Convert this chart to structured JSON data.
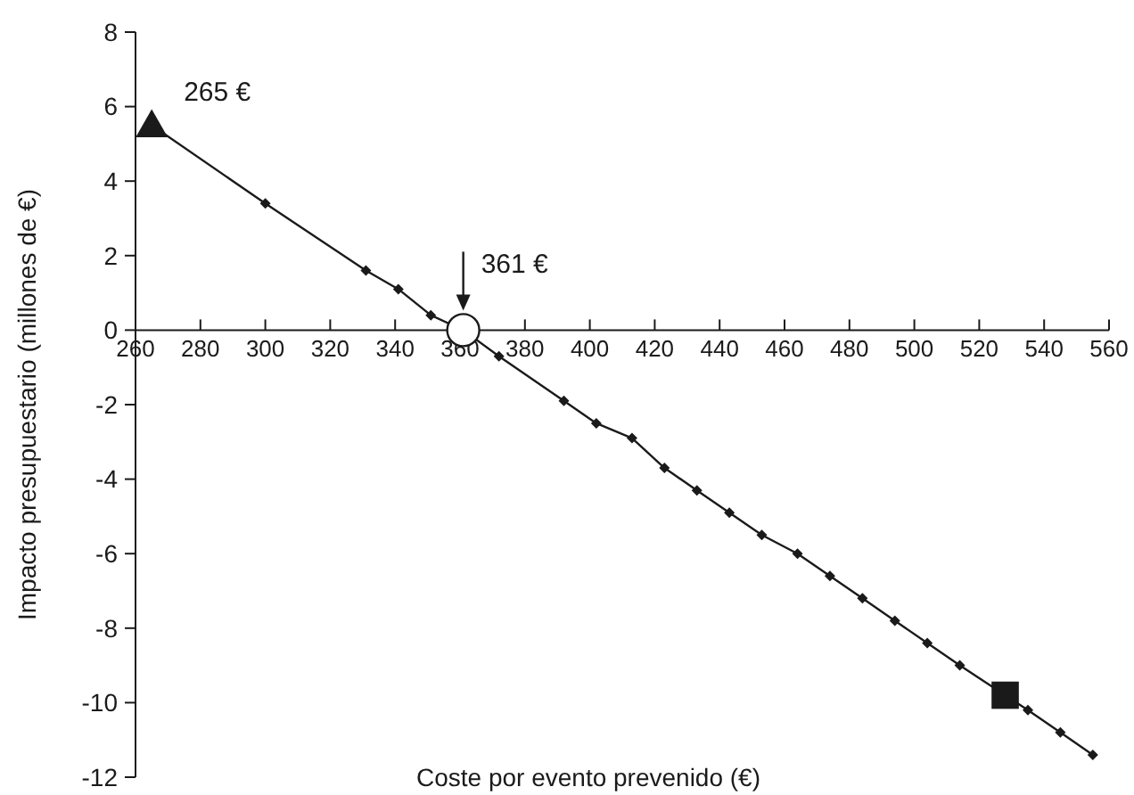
{
  "chart_data": {
    "type": "line",
    "xlabel": "Coste por evento prevenido (€)",
    "ylabel": "Impacto presupuestario (millones de €)",
    "xlim": [
      260,
      560
    ],
    "xticks": [
      260,
      280,
      300,
      320,
      340,
      360,
      380,
      400,
      420,
      440,
      460,
      480,
      500,
      520,
      540,
      560
    ],
    "ylim": [
      -12,
      8
    ],
    "yticks": [
      -12,
      -10,
      -8,
      -6,
      -4,
      -2,
      0,
      2,
      4,
      6,
      8
    ],
    "grid": false,
    "series": [
      {
        "color": "#1a1a1a",
        "marker": "none",
        "line_style": "solid",
        "x": [
          265,
          300,
          331,
          341,
          351,
          361,
          372,
          392,
          402,
          413,
          423,
          433,
          443,
          453,
          464,
          474,
          484,
          494,
          504,
          514,
          528,
          535,
          545,
          555
        ],
        "values": [
          5.5,
          3.4,
          1.6,
          1.1,
          0.4,
          0,
          -0.7,
          -1.9,
          -2.5,
          -2.9,
          -3.7,
          -4.3,
          -4.9,
          -5.5,
          -6.0,
          -6.6,
          -7.2,
          -7.8,
          -8.4,
          -9.0,
          -9.8,
          -10.2,
          -10.8,
          -11.4
        ]
      },
      {
        "type": "scatter",
        "color": "#1a1a1a",
        "marker": "diamond",
        "x": [
          300,
          331,
          341,
          351,
          372,
          392,
          402,
          413,
          423,
          433,
          443,
          453,
          464,
          474,
          484,
          494,
          504,
          514,
          535,
          545,
          555
        ],
        "values": [
          3.4,
          1.6,
          1.1,
          0.4,
          -0.7,
          -1.9,
          -2.5,
          -2.9,
          -3.7,
          -4.3,
          -4.9,
          -5.5,
          -6.0,
          -6.6,
          -7.2,
          -7.8,
          -8.4,
          -9.0,
          -10.2,
          -10.8,
          -11.4
        ]
      },
      {
        "type": "scatter",
        "color": "#1a1a1a",
        "marker": "triangle",
        "x": [
          265
        ],
        "values": [
          5.5
        ]
      },
      {
        "type": "scatter",
        "color": "#ffffff",
        "marker": "circle",
        "x": [
          361
        ],
        "values": [
          0
        ]
      },
      {
        "type": "scatter",
        "color": "#1a1a1a",
        "marker": "square",
        "x": [
          528
        ],
        "values": [
          -9.8
        ]
      }
    ],
    "annotations": [
      {
        "text": "265 €",
        "x": 265,
        "y": 5.5
      },
      {
        "text": "361 €",
        "x": 361,
        "y": 0
      }
    ]
  }
}
